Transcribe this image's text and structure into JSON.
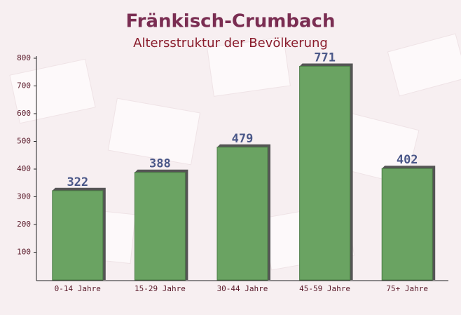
{
  "chart_data": {
    "type": "bar",
    "title": "Fränkisch-Crumbach",
    "subtitle": "Altersstruktur der Bevölkerung",
    "categories": [
      "0-14 Jahre",
      "15-29 Jahre",
      "30-44 Jahre",
      "45-59 Jahre",
      "75+ Jahre"
    ],
    "values": [
      322,
      388,
      479,
      771,
      402
    ],
    "color": "#6aa362",
    "ylim": [
      0,
      800
    ],
    "yticks": [
      100,
      200,
      300,
      400,
      500,
      600,
      700,
      800
    ],
    "grid": false
  }
}
